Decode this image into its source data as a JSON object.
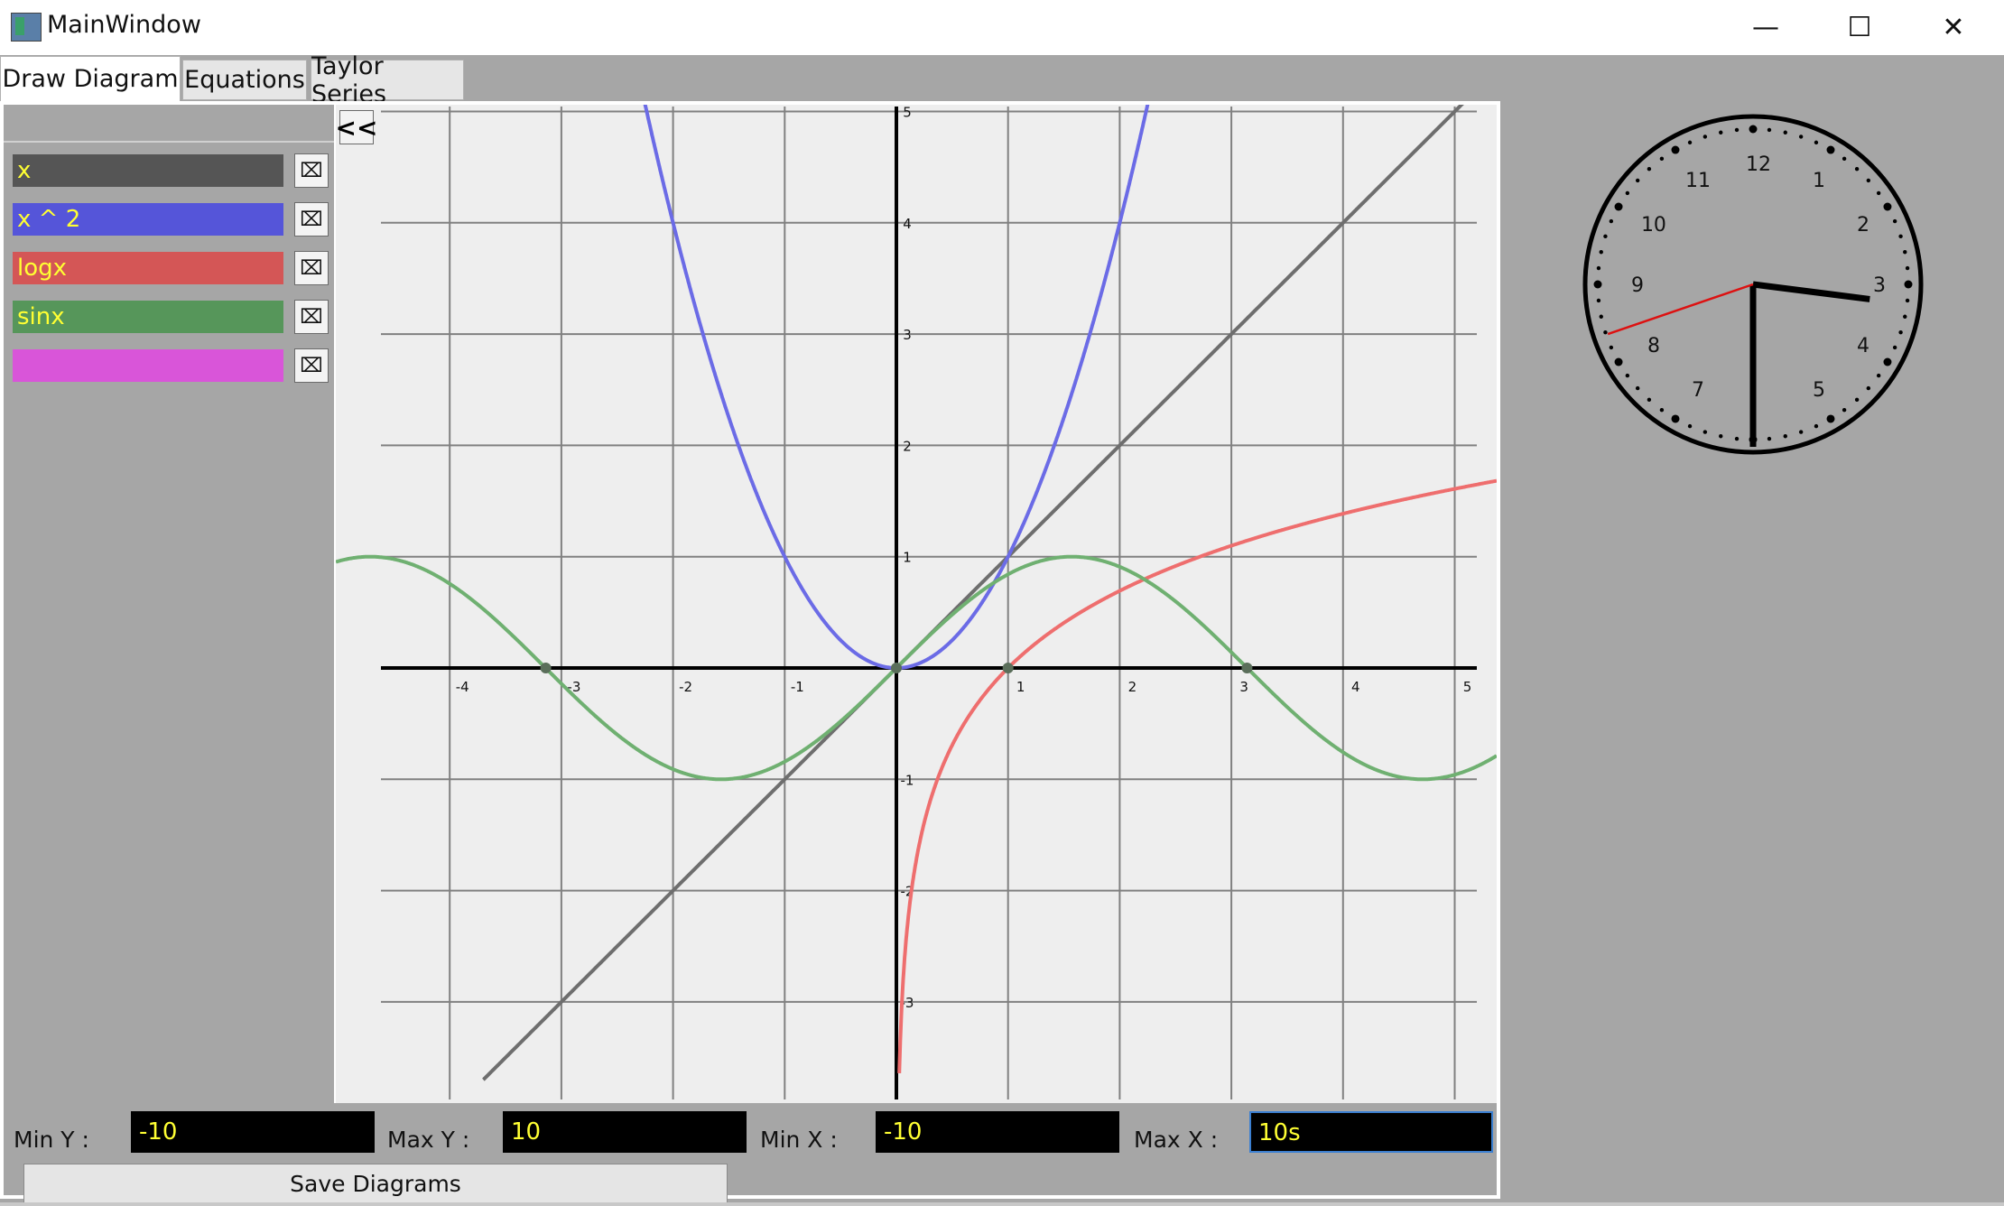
{
  "window": {
    "title": "MainWindow",
    "minimize_glyph": "—",
    "maximize_glyph": "☐",
    "close_glyph": "✕"
  },
  "tabs": [
    {
      "label": "Draw Diagram",
      "active": true
    },
    {
      "label": "Equations",
      "active": false
    },
    {
      "label": "Taylor Series",
      "active": false
    }
  ],
  "functions": [
    {
      "expr": "x",
      "color": "#555555",
      "curve_color": "#6e6e6e"
    },
    {
      "expr": "x ^ 2",
      "color": "#5555d9",
      "curve_color": "#6b6be6"
    },
    {
      "expr": "logx",
      "color": "#d45656",
      "curve_color": "#ee6e6e"
    },
    {
      "expr": "sinx",
      "color": "#56965a",
      "curve_color": "#6fb071"
    },
    {
      "expr": "",
      "color": "#d955d9",
      "curve_color": "#d955d9"
    }
  ],
  "delete_icon_glyph": "⌧",
  "collapse_label": "<<",
  "chart_data": {
    "type": "line",
    "xlim": [
      -5,
      5
    ],
    "ylim": [
      -3.9,
      5.1
    ],
    "x_ticks": [
      "-4",
      "-3",
      "-2",
      "-1",
      "1",
      "2",
      "3",
      "4",
      "5"
    ],
    "y_ticks": [
      "5",
      "4",
      "3",
      "2",
      "1",
      "-1",
      "-2",
      "-3"
    ],
    "grid": true,
    "series": [
      {
        "name": "x",
        "function": "x"
      },
      {
        "name": "x ^ 2",
        "function": "x^2"
      },
      {
        "name": "logx",
        "function": "ln(x)"
      },
      {
        "name": "sinx",
        "function": "sin(x)"
      }
    ],
    "roots": [
      {
        "x": -3.14,
        "y": 0
      },
      {
        "x": 0,
        "y": 0
      },
      {
        "x": 1,
        "y": 0
      },
      {
        "x": 3.14,
        "y": 0
      }
    ]
  },
  "controls": {
    "min_y_label": "Min Y :",
    "min_y_value": "-10",
    "max_y_label": "Max Y :",
    "max_y_value": "10",
    "min_x_label": "Min X :",
    "min_x_value": "-10",
    "max_x_label": "Max X :",
    "max_x_value": "10s",
    "save_label": "Save Diagrams"
  },
  "clock": {
    "hour": 2,
    "minute": 30,
    "second": 41,
    "numbers": [
      "12",
      "1",
      "2",
      "3",
      "4",
      "5",
      "7",
      "8",
      "9",
      "10",
      "11"
    ]
  }
}
